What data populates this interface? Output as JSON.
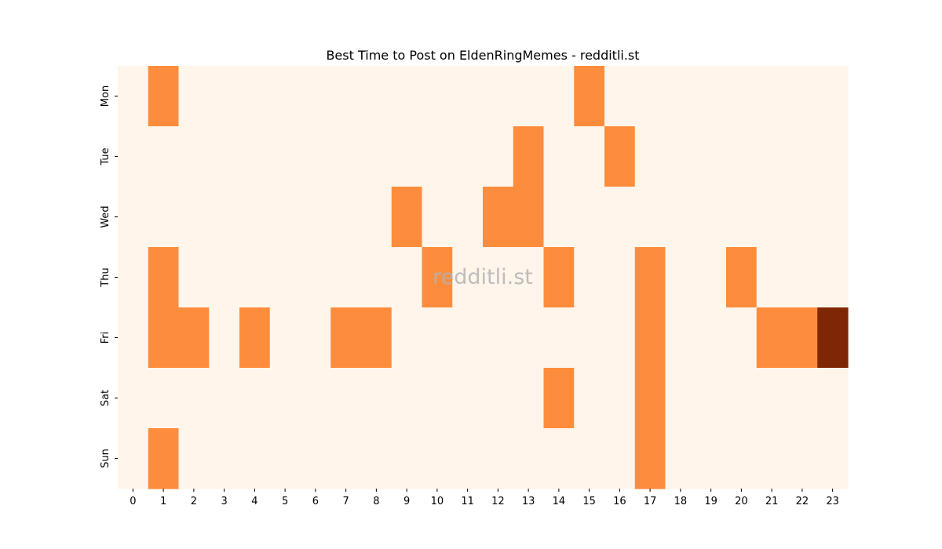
{
  "chart_data": {
    "type": "heatmap",
    "title": "Best Time to Post on EldenRingMemes - redditli.st",
    "watermark": "redditli.st",
    "xlabel": "",
    "ylabel": "",
    "x_ticks": [
      "0",
      "1",
      "2",
      "3",
      "4",
      "5",
      "6",
      "7",
      "8",
      "9",
      "10",
      "11",
      "12",
      "13",
      "14",
      "15",
      "16",
      "17",
      "18",
      "19",
      "20",
      "21",
      "22",
      "23"
    ],
    "y_ticks": [
      "Mon",
      "Tue",
      "Wed",
      "Thu",
      "Fri",
      "Sat",
      "Sun"
    ],
    "colormap": "Oranges",
    "colors": {
      "low": "#fff5eb",
      "mid": "#fd8d3c",
      "high": "#7f2704"
    },
    "grid": false,
    "legend": "none",
    "values": [
      [
        0,
        1,
        0,
        0,
        0,
        0,
        0,
        0,
        0,
        0,
        0,
        0,
        0,
        0,
        0,
        1,
        0,
        0,
        0,
        0,
        0,
        0,
        0,
        0
      ],
      [
        0,
        0,
        0,
        0,
        0,
        0,
        0,
        0,
        0,
        0,
        0,
        0,
        0,
        1,
        0,
        0,
        1,
        0,
        0,
        0,
        0,
        0,
        0,
        0
      ],
      [
        0,
        0,
        0,
        0,
        0,
        0,
        0,
        0,
        0,
        1,
        0,
        0,
        1,
        1,
        0,
        0,
        0,
        0,
        0,
        0,
        0,
        0,
        0,
        0
      ],
      [
        0,
        1,
        0,
        0,
        0,
        0,
        0,
        0,
        0,
        0,
        1,
        0,
        0,
        0,
        1,
        0,
        0,
        1,
        0,
        0,
        1,
        0,
        0,
        0
      ],
      [
        0,
        1,
        1,
        0,
        1,
        0,
        0,
        1,
        1,
        0,
        0,
        0,
        0,
        0,
        0,
        0,
        0,
        1,
        0,
        0,
        0,
        1,
        1,
        2
      ],
      [
        0,
        0,
        0,
        0,
        0,
        0,
        0,
        0,
        0,
        0,
        0,
        0,
        0,
        0,
        1,
        0,
        0,
        1,
        0,
        0,
        0,
        0,
        0,
        0
      ],
      [
        0,
        1,
        0,
        0,
        0,
        0,
        0,
        0,
        0,
        0,
        0,
        0,
        0,
        0,
        0,
        0,
        0,
        1,
        0,
        0,
        0,
        0,
        0,
        0
      ]
    ]
  }
}
